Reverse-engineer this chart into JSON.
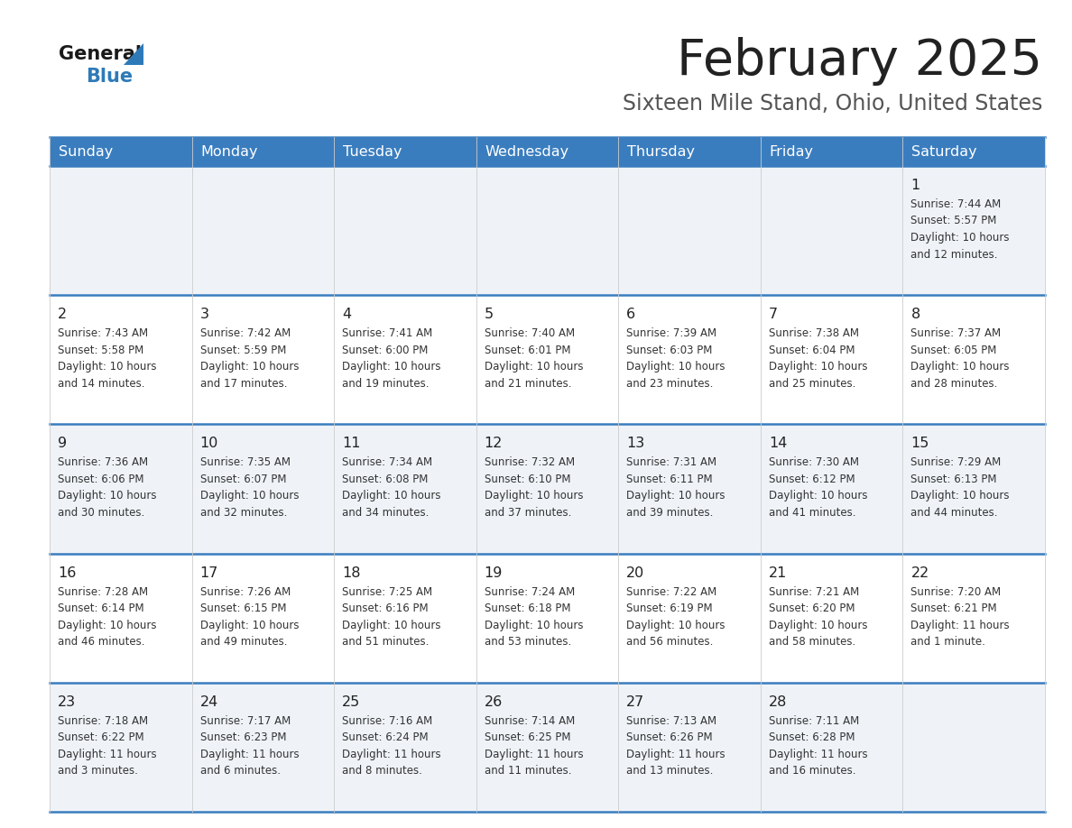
{
  "title": "February 2025",
  "subtitle": "Sixteen Mile Stand, Ohio, United States",
  "days_of_week": [
    "Sunday",
    "Monday",
    "Tuesday",
    "Wednesday",
    "Thursday",
    "Friday",
    "Saturday"
  ],
  "header_bg": "#3a7dbf",
  "header_text": "#ffffff",
  "row_bg_light": "#eff3f8",
  "row_bg_white": "#ffffff",
  "cell_border_color": "#3a7dbf",
  "row_divider_color": "#3a7dbf",
  "day_num_color": "#222222",
  "info_text_color": "#333333",
  "title_color": "#222222",
  "subtitle_color": "#555555",
  "logo_general_color": "#1a1a1a",
  "logo_blue_color": "#2e7ab8",
  "calendar_data": [
    [
      {
        "day": null,
        "sunrise": null,
        "sunset": null,
        "daylight_line1": null,
        "daylight_line2": null
      },
      {
        "day": null,
        "sunrise": null,
        "sunset": null,
        "daylight_line1": null,
        "daylight_line2": null
      },
      {
        "day": null,
        "sunrise": null,
        "sunset": null,
        "daylight_line1": null,
        "daylight_line2": null
      },
      {
        "day": null,
        "sunrise": null,
        "sunset": null,
        "daylight_line1": null,
        "daylight_line2": null
      },
      {
        "day": null,
        "sunrise": null,
        "sunset": null,
        "daylight_line1": null,
        "daylight_line2": null
      },
      {
        "day": null,
        "sunrise": null,
        "sunset": null,
        "daylight_line1": null,
        "daylight_line2": null
      },
      {
        "day": 1,
        "sunrise": "7:44 AM",
        "sunset": "5:57 PM",
        "daylight_line1": "Daylight: 10 hours",
        "daylight_line2": "and 12 minutes."
      }
    ],
    [
      {
        "day": 2,
        "sunrise": "7:43 AM",
        "sunset": "5:58 PM",
        "daylight_line1": "Daylight: 10 hours",
        "daylight_line2": "and 14 minutes."
      },
      {
        "day": 3,
        "sunrise": "7:42 AM",
        "sunset": "5:59 PM",
        "daylight_line1": "Daylight: 10 hours",
        "daylight_line2": "and 17 minutes."
      },
      {
        "day": 4,
        "sunrise": "7:41 AM",
        "sunset": "6:00 PM",
        "daylight_line1": "Daylight: 10 hours",
        "daylight_line2": "and 19 minutes."
      },
      {
        "day": 5,
        "sunrise": "7:40 AM",
        "sunset": "6:01 PM",
        "daylight_line1": "Daylight: 10 hours",
        "daylight_line2": "and 21 minutes."
      },
      {
        "day": 6,
        "sunrise": "7:39 AM",
        "sunset": "6:03 PM",
        "daylight_line1": "Daylight: 10 hours",
        "daylight_line2": "and 23 minutes."
      },
      {
        "day": 7,
        "sunrise": "7:38 AM",
        "sunset": "6:04 PM",
        "daylight_line1": "Daylight: 10 hours",
        "daylight_line2": "and 25 minutes."
      },
      {
        "day": 8,
        "sunrise": "7:37 AM",
        "sunset": "6:05 PM",
        "daylight_line1": "Daylight: 10 hours",
        "daylight_line2": "and 28 minutes."
      }
    ],
    [
      {
        "day": 9,
        "sunrise": "7:36 AM",
        "sunset": "6:06 PM",
        "daylight_line1": "Daylight: 10 hours",
        "daylight_line2": "and 30 minutes."
      },
      {
        "day": 10,
        "sunrise": "7:35 AM",
        "sunset": "6:07 PM",
        "daylight_line1": "Daylight: 10 hours",
        "daylight_line2": "and 32 minutes."
      },
      {
        "day": 11,
        "sunrise": "7:34 AM",
        "sunset": "6:08 PM",
        "daylight_line1": "Daylight: 10 hours",
        "daylight_line2": "and 34 minutes."
      },
      {
        "day": 12,
        "sunrise": "7:32 AM",
        "sunset": "6:10 PM",
        "daylight_line1": "Daylight: 10 hours",
        "daylight_line2": "and 37 minutes."
      },
      {
        "day": 13,
        "sunrise": "7:31 AM",
        "sunset": "6:11 PM",
        "daylight_line1": "Daylight: 10 hours",
        "daylight_line2": "and 39 minutes."
      },
      {
        "day": 14,
        "sunrise": "7:30 AM",
        "sunset": "6:12 PM",
        "daylight_line1": "Daylight: 10 hours",
        "daylight_line2": "and 41 minutes."
      },
      {
        "day": 15,
        "sunrise": "7:29 AM",
        "sunset": "6:13 PM",
        "daylight_line1": "Daylight: 10 hours",
        "daylight_line2": "and 44 minutes."
      }
    ],
    [
      {
        "day": 16,
        "sunrise": "7:28 AM",
        "sunset": "6:14 PM",
        "daylight_line1": "Daylight: 10 hours",
        "daylight_line2": "and 46 minutes."
      },
      {
        "day": 17,
        "sunrise": "7:26 AM",
        "sunset": "6:15 PM",
        "daylight_line1": "Daylight: 10 hours",
        "daylight_line2": "and 49 minutes."
      },
      {
        "day": 18,
        "sunrise": "7:25 AM",
        "sunset": "6:16 PM",
        "daylight_line1": "Daylight: 10 hours",
        "daylight_line2": "and 51 minutes."
      },
      {
        "day": 19,
        "sunrise": "7:24 AM",
        "sunset": "6:18 PM",
        "daylight_line1": "Daylight: 10 hours",
        "daylight_line2": "and 53 minutes."
      },
      {
        "day": 20,
        "sunrise": "7:22 AM",
        "sunset": "6:19 PM",
        "daylight_line1": "Daylight: 10 hours",
        "daylight_line2": "and 56 minutes."
      },
      {
        "day": 21,
        "sunrise": "7:21 AM",
        "sunset": "6:20 PM",
        "daylight_line1": "Daylight: 10 hours",
        "daylight_line2": "and 58 minutes."
      },
      {
        "day": 22,
        "sunrise": "7:20 AM",
        "sunset": "6:21 PM",
        "daylight_line1": "Daylight: 11 hours",
        "daylight_line2": "and 1 minute."
      }
    ],
    [
      {
        "day": 23,
        "sunrise": "7:18 AM",
        "sunset": "6:22 PM",
        "daylight_line1": "Daylight: 11 hours",
        "daylight_line2": "and 3 minutes."
      },
      {
        "day": 24,
        "sunrise": "7:17 AM",
        "sunset": "6:23 PM",
        "daylight_line1": "Daylight: 11 hours",
        "daylight_line2": "and 6 minutes."
      },
      {
        "day": 25,
        "sunrise": "7:16 AM",
        "sunset": "6:24 PM",
        "daylight_line1": "Daylight: 11 hours",
        "daylight_line2": "and 8 minutes."
      },
      {
        "day": 26,
        "sunrise": "7:14 AM",
        "sunset": "6:25 PM",
        "daylight_line1": "Daylight: 11 hours",
        "daylight_line2": "and 11 minutes."
      },
      {
        "day": 27,
        "sunrise": "7:13 AM",
        "sunset": "6:26 PM",
        "daylight_line1": "Daylight: 11 hours",
        "daylight_line2": "and 13 minutes."
      },
      {
        "day": 28,
        "sunrise": "7:11 AM",
        "sunset": "6:28 PM",
        "daylight_line1": "Daylight: 11 hours",
        "daylight_line2": "and 16 minutes."
      },
      {
        "day": null,
        "sunrise": null,
        "sunset": null,
        "daylight_line1": null,
        "daylight_line2": null
      }
    ]
  ]
}
